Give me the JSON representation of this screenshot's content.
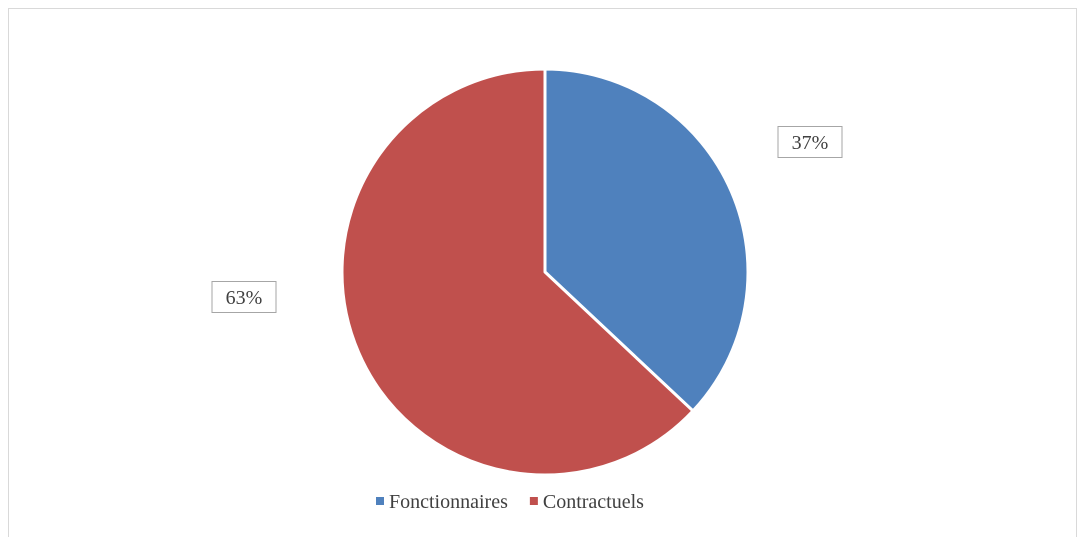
{
  "chart_data": {
    "type": "pie",
    "categories": [
      "Fonctionnaires",
      "Contractuels"
    ],
    "values": [
      37,
      63
    ],
    "value_labels": [
      "37%",
      "63%"
    ],
    "colors": [
      "#4f81bd",
      "#c0504d"
    ],
    "legend": "bottom"
  }
}
